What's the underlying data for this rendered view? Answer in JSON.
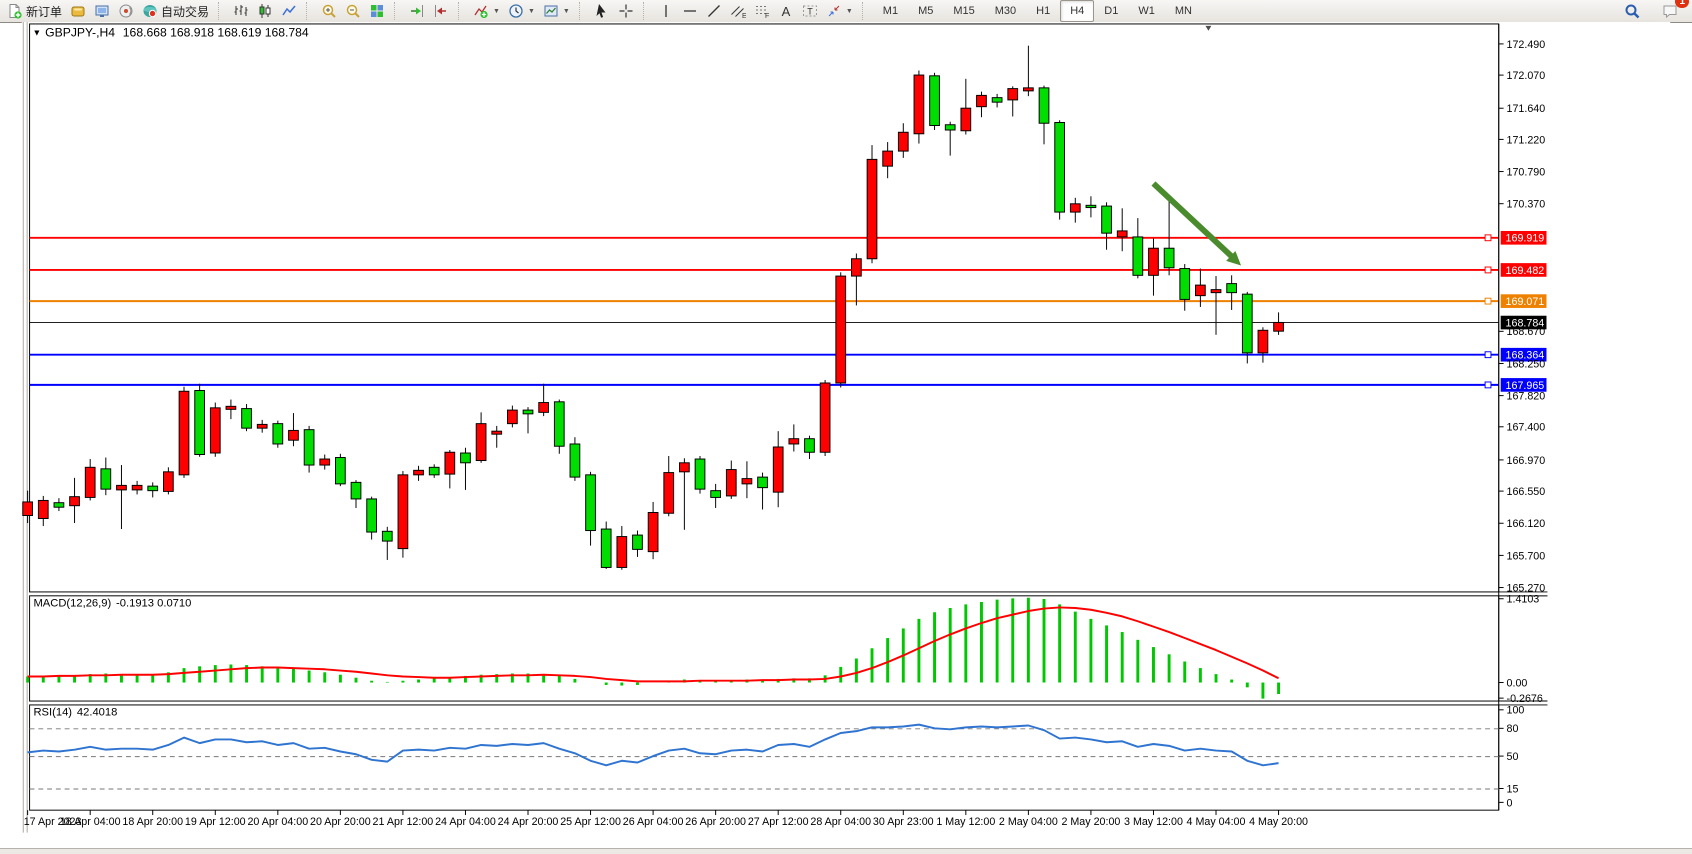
{
  "toolbar": {
    "groups": [
      {
        "name": "trade",
        "buttons": [
          {
            "name": "new-order",
            "icon": "doc-plus",
            "label": "新订单"
          },
          {
            "name": "market-watch",
            "icon": "gold"
          },
          {
            "name": "data-window",
            "icon": "monitor"
          },
          {
            "name": "navigator",
            "icon": "signal"
          },
          {
            "name": "auto-trading",
            "icon": "autotrade",
            "label": "自动交易"
          }
        ]
      },
      {
        "name": "chart-type",
        "buttons": [
          {
            "name": "bar-chart",
            "icon": "bars"
          },
          {
            "name": "candlestick-chart",
            "icon": "candles"
          },
          {
            "name": "line-chart",
            "icon": "linechart"
          }
        ]
      },
      {
        "name": "zoom",
        "buttons": [
          {
            "name": "zoom-in",
            "icon": "zoom-in"
          },
          {
            "name": "zoom-out",
            "icon": "zoom-out"
          },
          {
            "name": "tile-windows",
            "icon": "tiles"
          }
        ]
      },
      {
        "name": "scroll",
        "buttons": [
          {
            "name": "auto-scroll",
            "icon": "autoscroll"
          },
          {
            "name": "chart-shift",
            "icon": "shift"
          }
        ]
      },
      {
        "name": "insert",
        "buttons": [
          {
            "name": "indicators",
            "icon": "indicator",
            "dropdown": true
          },
          {
            "name": "periods",
            "icon": "clock",
            "dropdown": true
          },
          {
            "name": "templates",
            "icon": "template",
            "dropdown": true
          }
        ]
      },
      {
        "name": "pointer",
        "buttons": [
          {
            "name": "cursor",
            "icon": "cursor"
          },
          {
            "name": "crosshair",
            "icon": "crosshair"
          }
        ]
      },
      {
        "name": "draw",
        "buttons": [
          {
            "name": "vertical-line",
            "icon": "vline"
          },
          {
            "name": "horizontal-line",
            "icon": "hline"
          },
          {
            "name": "trendline",
            "icon": "tline"
          },
          {
            "name": "equidistant-channel",
            "icon": "channel"
          },
          {
            "name": "fibonacci",
            "icon": "fib"
          },
          {
            "name": "text",
            "icon": "textA"
          },
          {
            "name": "text-label",
            "icon": "labelT"
          },
          {
            "name": "arrows",
            "icon": "arrows",
            "dropdown": true
          }
        ]
      },
      {
        "name": "timeframes",
        "buttons": [
          {
            "name": "tf-m1",
            "label": "M1"
          },
          {
            "name": "tf-m5",
            "label": "M5"
          },
          {
            "name": "tf-m15",
            "label": "M15"
          },
          {
            "name": "tf-m30",
            "label": "M30"
          },
          {
            "name": "tf-h1",
            "label": "H1"
          },
          {
            "name": "tf-h4",
            "label": "H4"
          },
          {
            "name": "tf-d1",
            "label": "D1"
          },
          {
            "name": "tf-w1",
            "label": "W1"
          },
          {
            "name": "tf-mn",
            "label": "MN"
          }
        ]
      }
    ],
    "active_timeframe": "H4",
    "right": [
      {
        "name": "search",
        "icon": "magnifier"
      },
      {
        "name": "notifications",
        "icon": "chat",
        "badge": "1"
      }
    ]
  },
  "chart_title": {
    "symbol": "GBPJPY-,H4",
    "ohlc_text": "168.668 168.918 168.619 168.784"
  },
  "chart_data": {
    "type": "candlestick",
    "symbol": "GBPJPY-",
    "period": "H4",
    "up_color": "#FF0000",
    "down_color": "#00DD00",
    "price_ticks": [
      "172.490",
      "172.070",
      "171.640",
      "171.220",
      "170.790",
      "170.370",
      "168.670",
      "168.250",
      "167.820",
      "167.400",
      "166.970",
      "166.550",
      "166.120",
      "165.700",
      "165.270"
    ],
    "time_labels": [
      "17 Apr 2023",
      "18 Apr 04:00",
      "18 Apr 20:00",
      "19 Apr 12:00",
      "20 Apr 04:00",
      "20 Apr 20:00",
      "21 Apr 12:00",
      "24 Apr 04:00",
      "24 Apr 20:00",
      "25 Apr 12:00",
      "26 Apr 04:00",
      "26 Apr 20:00",
      "27 Apr 12:00",
      "28 Apr 04:00",
      "30 Apr 23:00",
      "1 May 12:00",
      "2 May 04:00",
      "2 May 20:00",
      "3 May 12:00",
      "4 May 04:00",
      "4 May 20:00"
    ],
    "lines": [
      {
        "label": "169.919",
        "price": 169.919,
        "color": "#FE0000",
        "width": 2,
        "role": "resistance"
      },
      {
        "label": "169.482",
        "price": 169.482,
        "color": "#FE0000",
        "width": 2,
        "role": "resistance"
      },
      {
        "label": "169.071",
        "price": 169.071,
        "color": "#EE8100",
        "width": 2,
        "role": "pivot"
      },
      {
        "label": "168.784",
        "price": 168.784,
        "color": "#000000",
        "width": 1,
        "role": "bid"
      },
      {
        "label": "168.364",
        "price": 168.364,
        "color": "#0000FE",
        "width": 2,
        "role": "support"
      },
      {
        "label": "167.965",
        "price": 167.965,
        "color": "#0000FE",
        "width": 2,
        "role": "support"
      }
    ],
    "arrow": {
      "from_bar": 72,
      "from_price": 170.63,
      "to_bar": 77.6,
      "to_price": 169.54,
      "color": "#4A8C2D"
    },
    "candles": [
      [
        166.22,
        166.55,
        166.12,
        166.4
      ],
      [
        166.18,
        166.48,
        166.08,
        166.42
      ],
      [
        166.39,
        166.45,
        166.28,
        166.33
      ],
      [
        166.35,
        166.72,
        166.12,
        166.47
      ],
      [
        166.46,
        166.97,
        166.42,
        166.86
      ],
      [
        166.84,
        166.99,
        166.49,
        166.57
      ],
      [
        166.56,
        166.89,
        166.04,
        166.62
      ],
      [
        166.56,
        166.68,
        166.5,
        166.62
      ],
      [
        166.61,
        166.66,
        166.46,
        166.55
      ],
      [
        166.54,
        166.86,
        166.5,
        166.8
      ],
      [
        166.76,
        167.93,
        166.72,
        167.87
      ],
      [
        167.88,
        167.97,
        167.0,
        167.03
      ],
      [
        167.05,
        167.72,
        167.0,
        167.65
      ],
      [
        167.63,
        167.76,
        167.5,
        167.67
      ],
      [
        167.64,
        167.7,
        167.34,
        167.38
      ],
      [
        167.38,
        167.49,
        167.32,
        167.43
      ],
      [
        167.44,
        167.48,
        167.12,
        167.17
      ],
      [
        167.22,
        167.58,
        167.14,
        167.35
      ],
      [
        167.36,
        167.41,
        166.79,
        166.89
      ],
      [
        166.89,
        167.03,
        166.83,
        166.97
      ],
      [
        166.99,
        167.04,
        166.61,
        166.64
      ],
      [
        166.66,
        166.69,
        166.32,
        166.44
      ],
      [
        166.44,
        166.47,
        165.9,
        166.0
      ],
      [
        166.01,
        166.07,
        165.63,
        165.88
      ],
      [
        165.78,
        166.81,
        165.66,
        166.76
      ],
      [
        166.76,
        166.88,
        166.68,
        166.82
      ],
      [
        166.86,
        166.9,
        166.72,
        166.76
      ],
      [
        166.77,
        167.09,
        166.58,
        167.06
      ],
      [
        167.05,
        167.12,
        166.56,
        166.92
      ],
      [
        166.95,
        167.59,
        166.92,
        167.44
      ],
      [
        167.3,
        167.41,
        167.12,
        167.34
      ],
      [
        167.44,
        167.68,
        167.39,
        167.62
      ],
      [
        167.62,
        167.66,
        167.31,
        167.57
      ],
      [
        167.59,
        167.97,
        167.54,
        167.72
      ],
      [
        167.73,
        167.76,
        167.04,
        167.14
      ],
      [
        167.17,
        167.26,
        166.68,
        166.73
      ],
      [
        166.76,
        166.8,
        165.82,
        166.02
      ],
      [
        166.04,
        166.14,
        165.51,
        165.53
      ],
      [
        165.53,
        166.08,
        165.5,
        165.94
      ],
      [
        165.96,
        166.02,
        165.67,
        165.77
      ],
      [
        165.74,
        166.4,
        165.64,
        166.26
      ],
      [
        166.25,
        167.01,
        166.21,
        166.79
      ],
      [
        166.8,
        166.98,
        166.03,
        166.92
      ],
      [
        166.97,
        167.01,
        166.51,
        166.57
      ],
      [
        166.55,
        166.64,
        166.32,
        166.46
      ],
      [
        166.48,
        166.95,
        166.44,
        166.83
      ],
      [
        166.64,
        166.94,
        166.45,
        166.71
      ],
      [
        166.73,
        166.79,
        166.3,
        166.59
      ],
      [
        166.53,
        167.34,
        166.33,
        167.13
      ],
      [
        167.17,
        167.43,
        167.07,
        167.24
      ],
      [
        167.24,
        167.28,
        166.97,
        167.06
      ],
      [
        167.06,
        168.02,
        167.01,
        167.98
      ],
      [
        167.98,
        169.45,
        167.92,
        169.4
      ],
      [
        169.4,
        169.7,
        169.01,
        169.63
      ],
      [
        169.63,
        171.14,
        169.57,
        170.95
      ],
      [
        170.86,
        171.18,
        170.7,
        171.06
      ],
      [
        171.06,
        171.43,
        170.97,
        171.31
      ],
      [
        171.29,
        172.13,
        171.16,
        172.07
      ],
      [
        172.06,
        172.1,
        171.34,
        171.4
      ],
      [
        171.41,
        171.45,
        171.0,
        171.34
      ],
      [
        171.33,
        172.02,
        171.28,
        171.63
      ],
      [
        171.65,
        171.85,
        171.51,
        171.8
      ],
      [
        171.77,
        171.82,
        171.64,
        171.71
      ],
      [
        171.74,
        171.92,
        171.52,
        171.89
      ],
      [
        171.86,
        172.46,
        171.79,
        171.9
      ],
      [
        171.9,
        171.93,
        171.15,
        171.43
      ],
      [
        171.44,
        171.47,
        170.15,
        170.25
      ],
      [
        170.25,
        170.44,
        170.11,
        170.36
      ],
      [
        170.34,
        170.46,
        170.18,
        170.31
      ],
      [
        170.33,
        170.38,
        169.75,
        169.97
      ],
      [
        169.92,
        170.3,
        169.73,
        170.0
      ],
      [
        169.92,
        170.17,
        169.37,
        169.41
      ],
      [
        169.41,
        169.9,
        169.14,
        169.77
      ],
      [
        169.77,
        170.41,
        169.41,
        169.51
      ],
      [
        169.5,
        169.56,
        168.94,
        169.09
      ],
      [
        169.14,
        169.5,
        168.99,
        169.28
      ],
      [
        169.18,
        169.4,
        168.62,
        169.22
      ],
      [
        169.3,
        169.41,
        168.95,
        169.18
      ],
      [
        169.16,
        169.19,
        168.24,
        168.38
      ],
      [
        168.38,
        168.72,
        168.25,
        168.68
      ],
      [
        168.668,
        168.918,
        168.619,
        168.784
      ]
    ],
    "macd": {
      "name": "MACD(12,26,9)",
      "values_text": "-0.1913 0.0710",
      "hist_color": "#00C800",
      "signal_color": "#FF0000",
      "axis": [
        "1.4103",
        "0.00",
        "-0.2676"
      ],
      "histogram": [
        0.1,
        0.11,
        0.11,
        0.12,
        0.14,
        0.15,
        0.14,
        0.13,
        0.13,
        0.17,
        0.24,
        0.27,
        0.29,
        0.3,
        0.29,
        0.27,
        0.25,
        0.23,
        0.2,
        0.17,
        0.13,
        0.08,
        0.03,
        0.01,
        0.03,
        0.05,
        0.07,
        0.09,
        0.11,
        0.13,
        0.14,
        0.15,
        0.15,
        0.14,
        0.11,
        0.06,
        0.0,
        -0.04,
        -0.05,
        -0.04,
        0.0,
        0.03,
        0.05,
        0.04,
        0.03,
        0.04,
        0.05,
        0.04,
        0.06,
        0.07,
        0.07,
        0.12,
        0.26,
        0.4,
        0.57,
        0.74,
        0.9,
        1.06,
        1.17,
        1.24,
        1.3,
        1.34,
        1.38,
        1.4,
        1.41,
        1.39,
        1.3,
        1.18,
        1.06,
        0.95,
        0.84,
        0.71,
        0.59,
        0.47,
        0.35,
        0.24,
        0.14,
        0.05,
        -0.08,
        -0.2676,
        -0.1913
      ],
      "signal": [
        0.1,
        0.1,
        0.11,
        0.11,
        0.12,
        0.12,
        0.13,
        0.13,
        0.13,
        0.14,
        0.16,
        0.18,
        0.2,
        0.22,
        0.24,
        0.25,
        0.25,
        0.24,
        0.23,
        0.22,
        0.2,
        0.18,
        0.15,
        0.12,
        0.1,
        0.09,
        0.08,
        0.08,
        0.09,
        0.1,
        0.11,
        0.12,
        0.12,
        0.13,
        0.12,
        0.11,
        0.09,
        0.06,
        0.04,
        0.02,
        0.02,
        0.02,
        0.02,
        0.03,
        0.03,
        0.03,
        0.03,
        0.04,
        0.04,
        0.05,
        0.05,
        0.06,
        0.1,
        0.16,
        0.24,
        0.34,
        0.45,
        0.57,
        0.69,
        0.8,
        0.9,
        0.99,
        1.07,
        1.13,
        1.19,
        1.23,
        1.25,
        1.24,
        1.21,
        1.16,
        1.1,
        1.02,
        0.93,
        0.84,
        0.74,
        0.64,
        0.54,
        0.43,
        0.32,
        0.2,
        0.071
      ]
    },
    "rsi": {
      "name": "RSI(14)",
      "value_text": "42.4018",
      "color": "#2F74D0",
      "axis": [
        "100",
        "80",
        "50",
        "15",
        "0"
      ],
      "levels": [
        80,
        50,
        15
      ],
      "series": [
        54,
        56,
        55,
        57,
        60,
        57,
        58,
        58,
        57,
        62,
        70,
        64,
        68,
        68,
        65,
        66,
        62,
        64,
        58,
        59,
        55,
        52,
        46,
        44,
        56,
        57,
        56,
        59,
        58,
        62,
        61,
        63,
        62,
        64,
        58,
        53,
        45,
        40,
        45,
        43,
        50,
        56,
        58,
        53,
        52,
        56,
        57,
        55,
        62,
        63,
        60,
        68,
        75,
        77,
        81,
        81,
        82,
        84,
        80,
        79,
        81,
        82,
        81,
        82,
        83,
        78,
        69,
        70,
        68,
        65,
        66,
        60,
        63,
        61,
        56,
        58,
        56,
        55,
        45,
        40,
        42.4
      ]
    }
  }
}
